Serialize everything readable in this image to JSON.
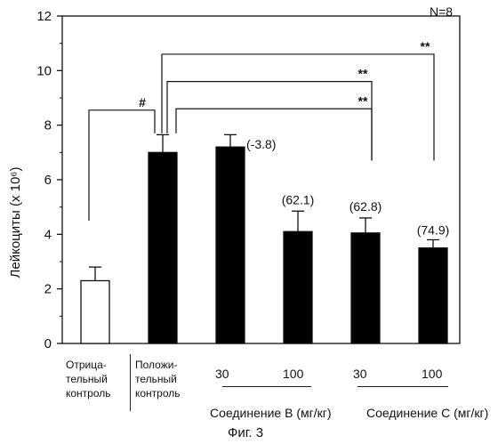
{
  "chart_data": {
    "type": "bar",
    "categories": [
      "Отрица-тельный контроль",
      "Положи-тельный контроль",
      "30",
      "100",
      "30",
      "100"
    ],
    "values": [
      2.3,
      7.0,
      7.2,
      4.1,
      4.05,
      3.5
    ],
    "errors": [
      0.5,
      0.65,
      0.45,
      0.75,
      0.55,
      0.3
    ],
    "bar_fills": [
      "#ffffff",
      "#000000",
      "#000000",
      "#000000",
      "#000000",
      "#000000"
    ],
    "data_labels": [
      "",
      "",
      "(-3.8)",
      "(62.1)",
      "(62.8)",
      "(74.9)"
    ],
    "ylabel": "Лейкоциты (x 10⁶)",
    "ylim": [
      0,
      12
    ],
    "yticks": [
      "0",
      "2",
      "4",
      "6",
      "8",
      "10",
      "12"
    ],
    "annotation_n": "N=8",
    "significance": [
      {
        "from": 0,
        "to": 1,
        "label": "#"
      },
      {
        "from": 1,
        "to": 3,
        "label": "**"
      },
      {
        "from": 1,
        "to": 4,
        "label": "**"
      },
      {
        "from": 1,
        "to": 5,
        "label": "**"
      }
    ],
    "groups": [
      "Соединение B (мг/кг)",
      "Соединение C (мг/кг)"
    ],
    "caption": "Фиг. 3"
  },
  "xaxis": {
    "negative_control": [
      "Отрица-",
      "тельный",
      "контроль"
    ],
    "positive_control": [
      "Положи-",
      "тельный",
      "контроль"
    ],
    "doses": [
      "30",
      "100",
      "30",
      "100"
    ]
  }
}
